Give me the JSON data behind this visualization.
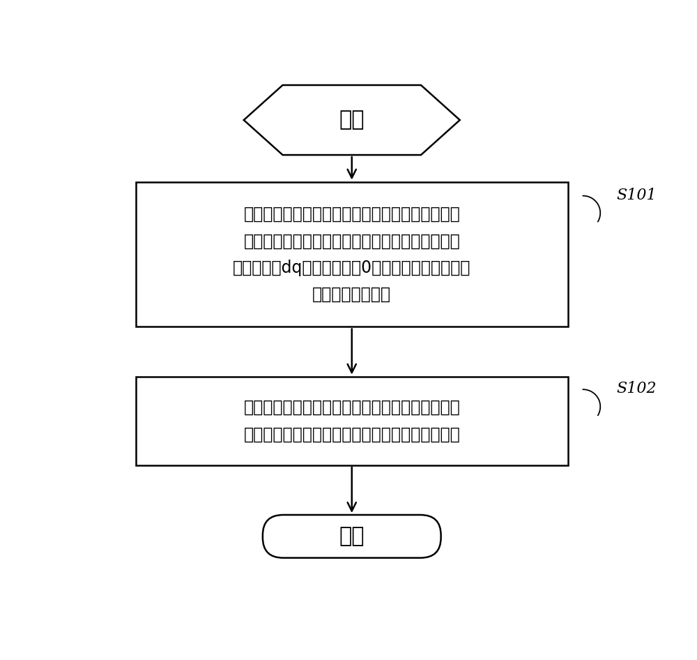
{
  "bg_color": "#ffffff",
  "line_color": "#000000",
  "fill_color": "#ffffff",
  "font_color": "#000000",
  "start_text": "开始",
  "end_text": "结束",
  "box1_line1": "分别控制永磁同步电机运行在正反两个方向上的特",
  "box1_line2": "定转速，并在电机控制器工作于电流环模式且永磁",
  "box1_line3": "同步电机的dq轴电流指令为0时，获取相应方向所对",
  "box1_line4": "应的电流环输出値",
  "box2_line1": "依据正反两个方向所对应的电流环输出値以及初始",
  "box2_line2": "位置角的预设初始値，计算得到初始位置角标定値",
  "label1": "S101",
  "label2": "S102",
  "font_size_box": 17,
  "font_size_start_end": 22,
  "font_size_label": 16,
  "lw": 1.8
}
